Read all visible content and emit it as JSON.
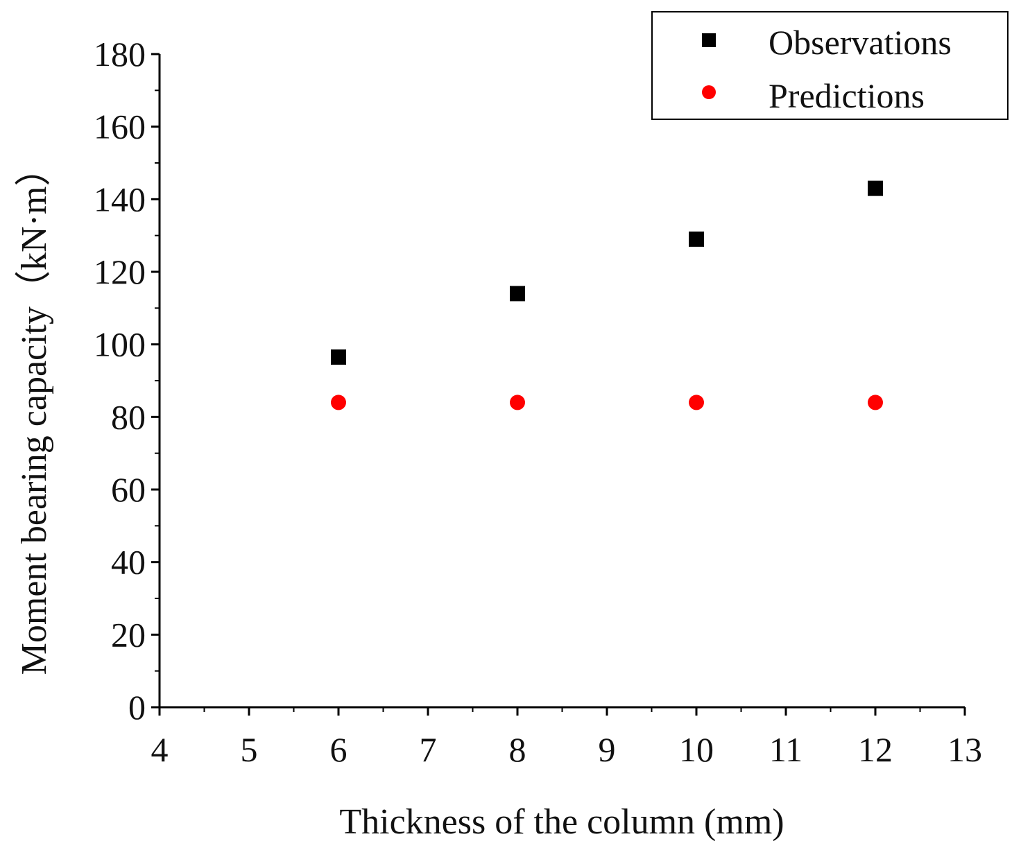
{
  "chart_data": {
    "type": "scatter",
    "title": "",
    "xlabel": "Thickness of the column (mm)",
    "ylabel": "Moment bearing capacity（kN·m）",
    "xlim": [
      4,
      13
    ],
    "ylim": [
      0,
      180
    ],
    "xticks": [
      "4",
      "5",
      "6",
      "7",
      "8",
      "9",
      "10",
      "11",
      "12",
      "13"
    ],
    "yticks": [
      "0",
      "20",
      "40",
      "60",
      "80",
      "100",
      "120",
      "140",
      "160",
      "180"
    ],
    "legend_position": "top-right",
    "series": [
      {
        "name": "Observations",
        "marker": "square",
        "color": "#000000",
        "x": [
          6,
          8,
          10,
          12
        ],
        "y": [
          96.5,
          114,
          129,
          143
        ]
      },
      {
        "name": "Predictions",
        "marker": "circle",
        "color": "#ff0000",
        "x": [
          6,
          8,
          10,
          12
        ],
        "y": [
          84,
          84,
          84,
          84
        ]
      }
    ]
  }
}
